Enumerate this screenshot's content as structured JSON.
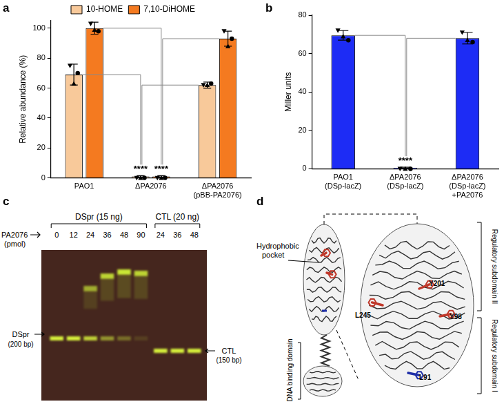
{
  "chart_data": [
    {
      "panel": "a",
      "type": "bar",
      "categories": [
        "PAO1",
        "ΔPA2076",
        [
          "ΔPA2076",
          "(pBB-PA2076)"
        ]
      ],
      "y_label": "Relative abundance (%)",
      "ylim": [
        0,
        105
      ],
      "yticks": [
        0,
        20,
        40,
        60,
        80,
        100
      ],
      "legend": "top",
      "grid": false,
      "series": [
        {
          "name": "10-HOME",
          "color": "#f8c99a",
          "values": [
            69,
            1,
            62
          ],
          "errors": [
            7,
            0.5,
            2
          ],
          "points": [
            [
              75,
              63,
              70
            ],
            [
              0,
              0,
              0
            ],
            [
              62,
              62,
              63
            ]
          ],
          "value_annotations": [
            null,
            "****",
            null
          ]
        },
        {
          "name": "7,10-DiHOME",
          "color": "#f47a20",
          "values": [
            100,
            1,
            93
          ],
          "errors": [
            4,
            0.5,
            5
          ],
          "points": [
            [
              103,
              99,
              98
            ],
            [
              0,
              0,
              0
            ],
            [
              98,
              88,
              93
            ]
          ],
          "value_annotations": [
            null,
            "****",
            null
          ]
        }
      ]
    },
    {
      "panel": "b",
      "type": "bar",
      "categories": [
        [
          "PAO1",
          "(DSp-lacZ)"
        ],
        [
          "ΔPA2076",
          "(DSp-lacZ)"
        ],
        [
          "ΔPA2076",
          "(DSp-lacZ)",
          "+PA2076"
        ]
      ],
      "y_label": "Miller units",
      "ylim": [
        0,
        80
      ],
      "yticks": [
        0,
        20,
        40,
        60,
        80
      ],
      "grid": false,
      "series": [
        {
          "name": "Miller units",
          "color": "#1d2cf5",
          "values": [
            69.5,
            0.5,
            68
          ],
          "errors": [
            2.5,
            0.3,
            3
          ],
          "points": [
            [
              72,
              69,
              67
            ],
            [
              0,
              0,
              0
            ],
            [
              71,
              67,
              66
            ]
          ],
          "value_annotations": [
            null,
            "****",
            null
          ]
        }
      ]
    }
  ],
  "gel": {
    "panel": "c",
    "groups": [
      {
        "label": "DSpr (15 ng)",
        "lanes": [
          0,
          12,
          24,
          36,
          48,
          90
        ]
      },
      {
        "label": "CTL (20 ng)",
        "lanes": [
          24,
          36,
          48
        ]
      }
    ],
    "lane_title": "PA2076",
    "lane_unit": "(pmol)",
    "band_left": [
      "DSpr",
      "(200 bp)"
    ],
    "band_right": [
      "CTL",
      "(150 bp)"
    ]
  },
  "structure": {
    "panel": "d",
    "pocket_label": [
      "Hydrophobic",
      "pocket"
    ],
    "dna_label": "DNA binding domain",
    "subdomains": [
      "Regulatory subdomain II",
      "Regulatory subdomain I"
    ],
    "residues": [
      {
        "label": "Y201",
        "color": "#c0392b"
      },
      {
        "label": "L245",
        "color": "#c0392b"
      },
      {
        "label": "Y98",
        "color": "#c0392b"
      },
      {
        "label": "L91",
        "color": "#1f2fa8"
      }
    ]
  }
}
